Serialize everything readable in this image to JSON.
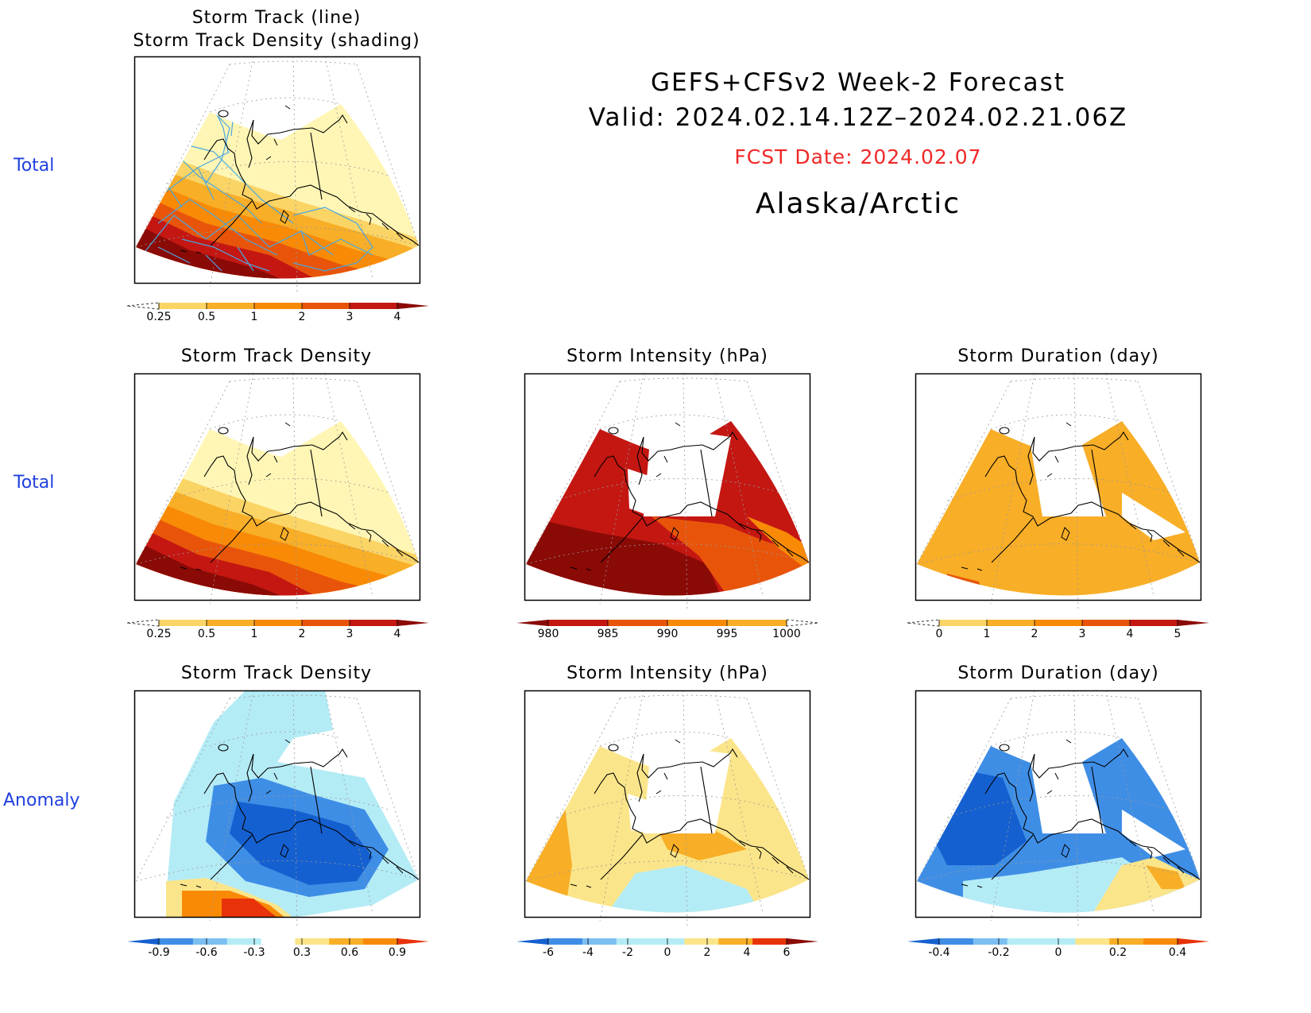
{
  "header": {
    "line1": "GEFS+CFSv2 Week-2 Forecast",
    "line2": "Valid: 2024.02.14.12Z–2024.02.21.06Z",
    "fcst": "FCST Date: 2024.02.07",
    "region": "Alaska/Arctic"
  },
  "rows": [
    {
      "label": "Total"
    },
    {
      "label": "Total"
    },
    {
      "label": "Anomaly"
    }
  ],
  "panels": [
    {
      "title1": "Storm Track (line)",
      "title2": "Storm Track Density (shading)"
    },
    {
      "title": "Storm Track Density"
    },
    {
      "title": "Storm Intensity (hPa)"
    },
    {
      "title": "Storm Duration (day)"
    },
    {
      "title": "Storm Track Density"
    },
    {
      "title": "Storm Intensity (hPa)"
    },
    {
      "title": "Storm Duration (day)"
    }
  ],
  "colorbars": [
    {
      "colors": [
        "#fff6b5",
        "#fbd466",
        "#f8ae27",
        "#f98a06",
        "#e8550a",
        "#c41712",
        "#8a0a06"
      ],
      "labels": [
        "0.25",
        "0.5",
        "1",
        "2",
        "3",
        "4"
      ],
      "under": true
    },
    {
      "colors": [
        "#fff6b5",
        "#fbd466",
        "#f8ae27",
        "#f98a06",
        "#e8550a",
        "#c41712",
        "#8a0a06"
      ],
      "labels": [
        "0.25",
        "0.5",
        "1",
        "2",
        "3",
        "4"
      ],
      "under": true
    },
    {
      "colors": [
        "#8a0a06",
        "#c41712",
        "#e8550a",
        "#f98a06",
        "#f8ae27",
        "#fff6b5"
      ],
      "labels": [
        "980",
        "985",
        "990",
        "995",
        "1000"
      ],
      "over": true
    },
    {
      "colors": [
        "#fff6b5",
        "#fbd466",
        "#f8ae27",
        "#f98a06",
        "#e8550a",
        "#c41712",
        "#8a0a06"
      ],
      "labels": [
        "0",
        "1",
        "2",
        "3",
        "4",
        "5"
      ],
      "under": true
    },
    {
      "colors": [
        "#1560d0",
        "#3f8ee6",
        "#7cc0f2",
        "#b4ecf6",
        "#ffffff",
        "#fbe58a",
        "#f8ae27",
        "#f98a06",
        "#e8330a"
      ],
      "labels": [
        "-0.9",
        "-0.6",
        "-0.3",
        "0.3",
        "0.6",
        "0.9"
      ]
    },
    {
      "colors": [
        "#1560d0",
        "#3f8ee6",
        "#7cc0f2",
        "#b4ecf6",
        "#b4ecf6",
        "#fbe58a",
        "#f8ae27",
        "#e8330a",
        "#8a0a06"
      ],
      "labels": [
        "-6",
        "-4",
        "-2",
        "0",
        "2",
        "4",
        "6"
      ]
    },
    {
      "colors": [
        "#1560d0",
        "#3f8ee6",
        "#7cc0f2",
        "#b4ecf6",
        "#b4ecf6",
        "#fbe58a",
        "#f8ae27",
        "#f98a06",
        "#e8330a"
      ],
      "labels": [
        "-0.4",
        "-0.2",
        "0",
        "0.2",
        "0.4"
      ]
    }
  ]
}
